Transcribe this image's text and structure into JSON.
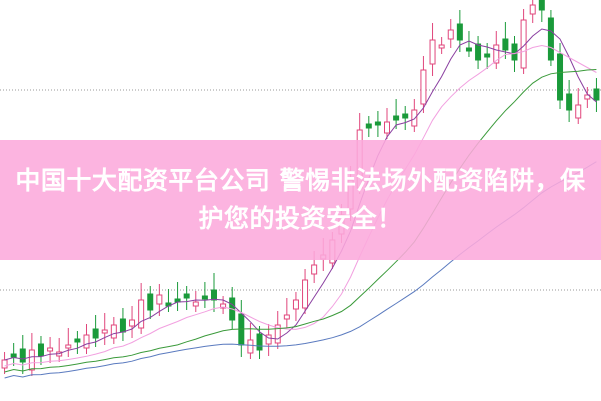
{
  "banner": {
    "title": "中国十大配资平台公司 警惕非法场外配资陷阱，保护您的投资安全！"
  },
  "colors": {
    "banner_bg": "#fcaadc",
    "up_candle": "#e0457b",
    "down_candle": "#1a9a3a",
    "ma_lines": [
      "#8a3fa0",
      "#f2a0e0",
      "#3a9a3a",
      "#5a7abf"
    ]
  }
}
